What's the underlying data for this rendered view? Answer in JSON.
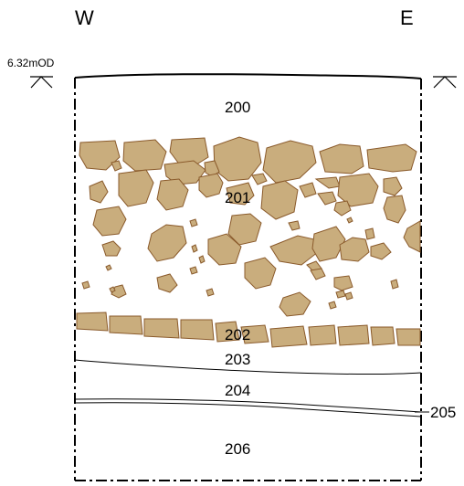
{
  "orientation": {
    "west": "W",
    "east": "E"
  },
  "datum": {
    "label": "6.32mOD"
  },
  "contexts": [
    "200",
    "201",
    "202",
    "203",
    "204",
    "205",
    "206"
  ],
  "colors": {
    "stone_fill": "#c9ad7d",
    "stone_outline": "#8a5a2b",
    "line": "#000000"
  }
}
